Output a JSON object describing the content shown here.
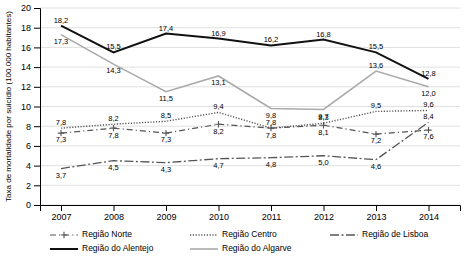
{
  "chart_data": {
    "type": "line",
    "y_label": "Taxa de mortalidade por suicídio (100.000 habitantes)",
    "x": [
      2007,
      2008,
      2009,
      2010,
      2011,
      2012,
      2013,
      2014
    ],
    "xlim": [
      2006.6,
      2014.6
    ],
    "xticks": [
      2007,
      2008,
      2009,
      2010,
      2011,
      2012,
      2013,
      2014
    ],
    "ylim": [
      0,
      20
    ],
    "yticks": [
      0,
      2,
      4,
      6,
      8,
      10,
      12,
      14,
      16,
      18,
      20
    ],
    "grid": "y",
    "legend": "bottom",
    "data_labels": true,
    "series": [
      {
        "name": "Região Norte",
        "color": "#555555",
        "line_style": "dashdot",
        "marker": "plus",
        "values": [
          7.3,
          7.8,
          7.3,
          8.2,
          7.8,
          8.1,
          7.2,
          7.6
        ],
        "value_labels": [
          "7,3",
          "7,8",
          "7,3",
          "8,2",
          "7,8",
          "8,1",
          "7,2",
          "7,6"
        ]
      },
      {
        "name": "Região Centro",
        "color": "#555555",
        "line_style": "dotted",
        "values": [
          7.8,
          8.2,
          8.5,
          9.4,
          7.8,
          8.3,
          9.5,
          9.6
        ],
        "value_labels": [
          "7,8",
          "8,2",
          "8,5",
          "9,4",
          "7,8",
          "8,3",
          "9,5",
          "9,6"
        ]
      },
      {
        "name": "Região de Lisboa",
        "color": "#555555",
        "line_style": "longdashdot",
        "values": [
          3.7,
          4.5,
          4.3,
          4.7,
          4.8,
          5.0,
          4.6,
          8.4
        ],
        "value_labels": [
          "3,7",
          "4,5",
          "4,3",
          "4,7",
          "4,8",
          "5,0",
          "4,6",
          "8,4"
        ]
      },
      {
        "name": "Região do Alentejo",
        "color": "#111111",
        "line_style": "solid",
        "values": [
          18.2,
          15.5,
          17.4,
          16.9,
          16.2,
          16.8,
          15.5,
          12.8
        ],
        "value_labels": [
          "18,2",
          "15,5",
          "17,4",
          "16,9",
          "16,2",
          "16,8",
          "15,5",
          "12,8"
        ]
      },
      {
        "name": "Região do Algarve",
        "color": "#aaaaaa",
        "line_style": "solid",
        "values": [
          17.3,
          14.3,
          11.5,
          13.1,
          9.8,
          9.7,
          13.6,
          12.0
        ],
        "value_labels": [
          "17,3",
          "14,3",
          "11,5",
          "13,1",
          "9,8",
          "9,7",
          "13,6",
          "12,0"
        ]
      }
    ]
  }
}
